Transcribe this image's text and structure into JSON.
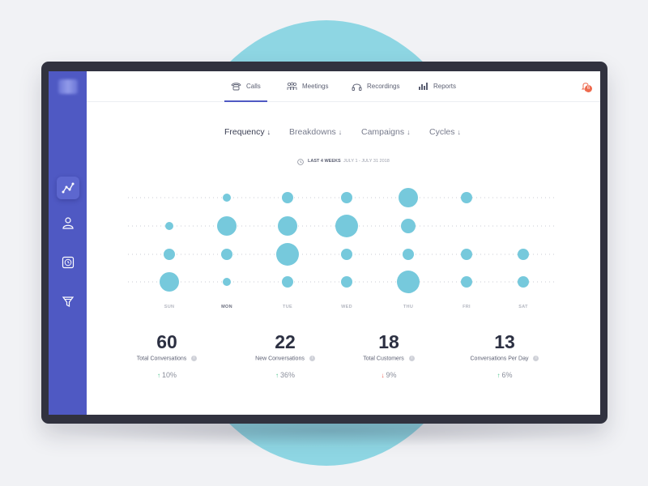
{
  "nav": {
    "tabs": [
      {
        "label": "Calls",
        "icon": "phone-icon",
        "active": true
      },
      {
        "label": "Meetings",
        "icon": "people-icon",
        "active": false
      },
      {
        "label": "Recordings",
        "icon": "headphones-icon",
        "active": false
      },
      {
        "label": "Reports",
        "icon": "bar-chart-icon",
        "active": false
      }
    ],
    "notification_count": "6"
  },
  "sidebar": {
    "items": [
      {
        "icon": "analytics-icon",
        "active": true
      },
      {
        "icon": "user-icon",
        "active": false
      },
      {
        "icon": "clock-icon",
        "active": false
      },
      {
        "icon": "funnel-icon",
        "active": false
      }
    ]
  },
  "subtabs": [
    {
      "label": "Frequency",
      "arrow": "↓",
      "active": true
    },
    {
      "label": "Breakdowns",
      "arrow": "↓",
      "active": false
    },
    {
      "label": "Campaigns",
      "arrow": "↓",
      "active": false
    },
    {
      "label": "Cycles",
      "arrow": "↓",
      "active": false
    }
  ],
  "range": {
    "label": "LAST 4 WEEKS",
    "dates": "JULY 1 - JULY 31 2018"
  },
  "chart_data": {
    "type": "scatter",
    "categories": [
      "SUN",
      "MON",
      "TUE",
      "WED",
      "THU",
      "FRI",
      "SAT"
    ],
    "active_category": "MON",
    "rows": 4,
    "color": "#76c9dc",
    "points": [
      {
        "day": "MON",
        "row": 1,
        "size": 1
      },
      {
        "day": "TUE",
        "row": 1,
        "size": 2
      },
      {
        "day": "WED",
        "row": 1,
        "size": 2
      },
      {
        "day": "THU",
        "row": 1,
        "size": 4
      },
      {
        "day": "FRI",
        "row": 1,
        "size": 2
      },
      {
        "day": "SUN",
        "row": 2,
        "size": 1
      },
      {
        "day": "MON",
        "row": 2,
        "size": 4
      },
      {
        "day": "TUE",
        "row": 2,
        "size": 4
      },
      {
        "day": "WED",
        "row": 2,
        "size": 5
      },
      {
        "day": "THU",
        "row": 2,
        "size": 3
      },
      {
        "day": "SUN",
        "row": 3,
        "size": 2
      },
      {
        "day": "MON",
        "row": 3,
        "size": 2
      },
      {
        "day": "TUE",
        "row": 3,
        "size": 5
      },
      {
        "day": "WED",
        "row": 3,
        "size": 2
      },
      {
        "day": "THU",
        "row": 3,
        "size": 2
      },
      {
        "day": "FRI",
        "row": 3,
        "size": 2
      },
      {
        "day": "SAT",
        "row": 3,
        "size": 2
      },
      {
        "day": "SUN",
        "row": 4,
        "size": 4
      },
      {
        "day": "MON",
        "row": 4,
        "size": 1
      },
      {
        "day": "TUE",
        "row": 4,
        "size": 2
      },
      {
        "day": "WED",
        "row": 4,
        "size": 2
      },
      {
        "day": "THU",
        "row": 4,
        "size": 5
      },
      {
        "day": "FRI",
        "row": 4,
        "size": 2
      },
      {
        "day": "SAT",
        "row": 4,
        "size": 2
      }
    ]
  },
  "stats": [
    {
      "value": "60",
      "label": "Total Conversations",
      "direction": "up",
      "change": "10%"
    },
    {
      "value": "22",
      "label": "New Conversations",
      "direction": "up",
      "change": "36%"
    },
    {
      "value": "18",
      "label": "Total Customers",
      "direction": "down",
      "change": "9%"
    },
    {
      "value": "13",
      "label": "Conversations Per Day",
      "direction": "up",
      "change": "6%"
    }
  ],
  "colors": {
    "sidebar": "#4f59c3",
    "accent": "#4f59c3",
    "bubble": "#76c9dc",
    "up": "#4bc28b",
    "down": "#ee5a4e",
    "badge": "#ee6a4e"
  }
}
